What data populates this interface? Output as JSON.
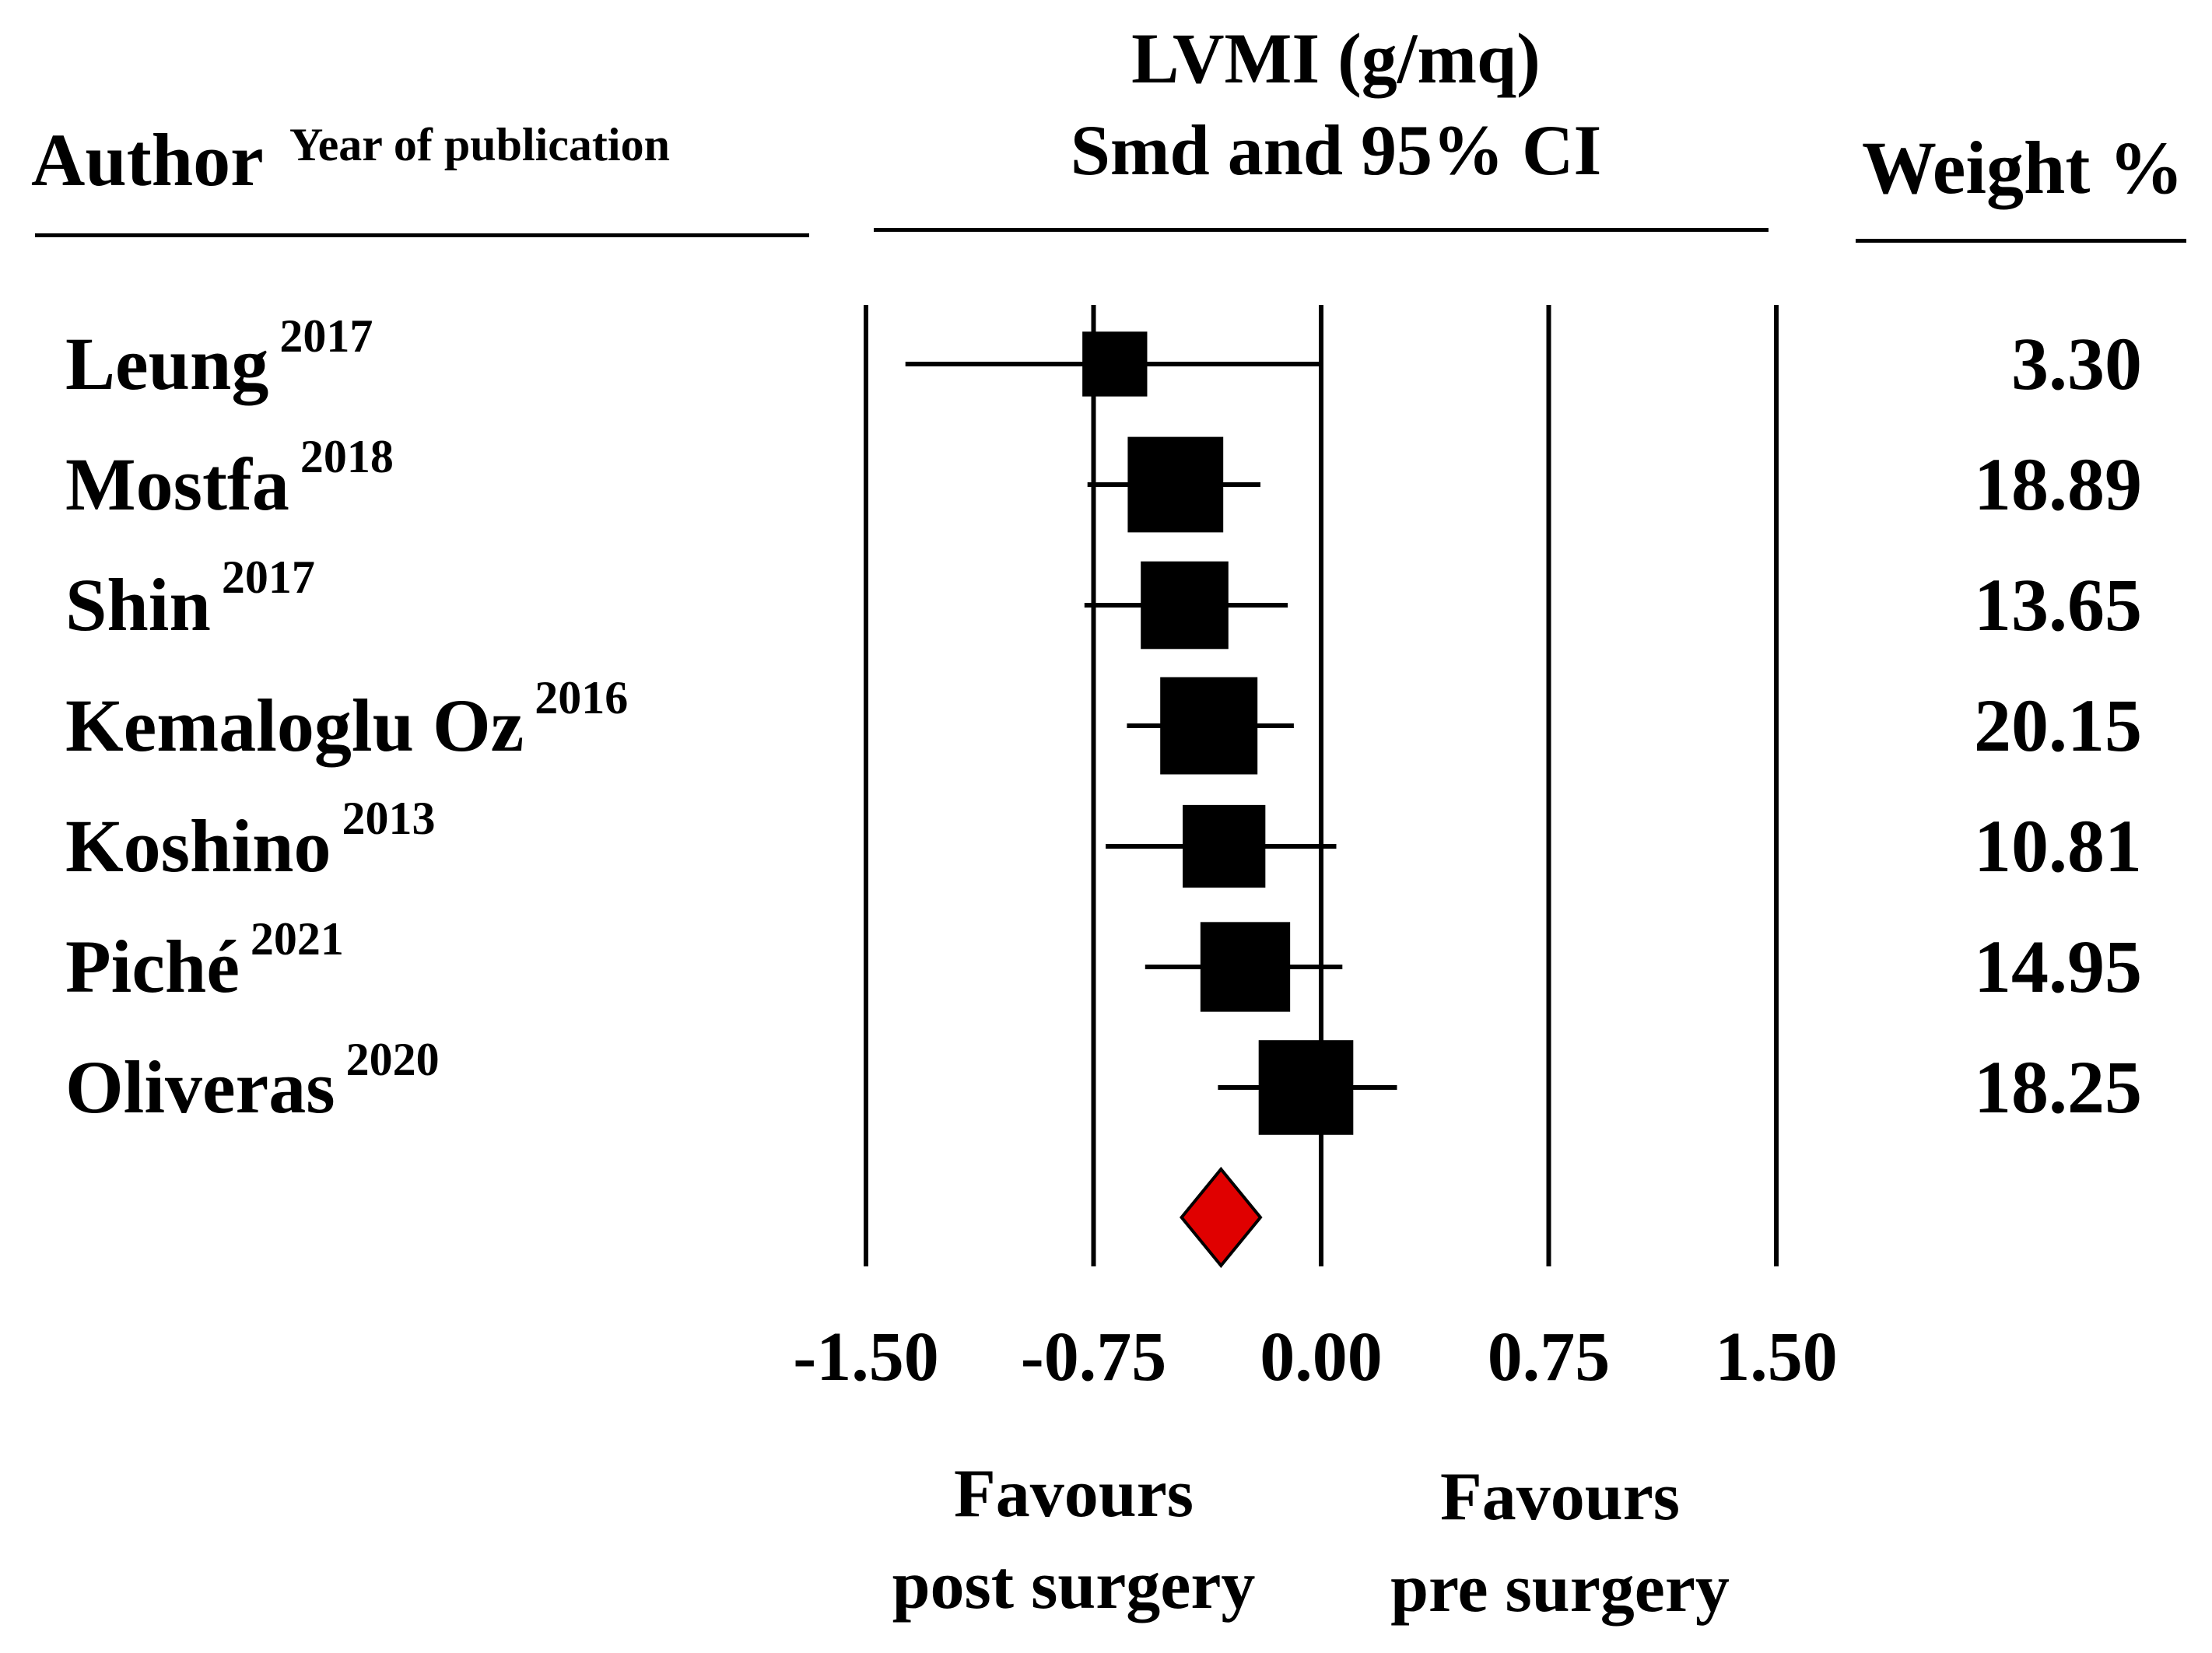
{
  "chart_data": {
    "type": "forest",
    "title": "LVMI (g/mq)",
    "subtitle": "Smd and 95% CI",
    "columns": {
      "author": "Author",
      "year": "Year of publication",
      "weight": "Weight %"
    },
    "xlim": [
      -1.5,
      1.5
    ],
    "xticks": [
      -1.5,
      -0.75,
      0.0,
      0.75,
      1.5
    ],
    "xtick_labels": [
      "-1.50",
      "-0.75",
      "0.00",
      "0.75",
      "1.50"
    ],
    "studies": [
      {
        "author": "Leung",
        "year": "2017",
        "smd": -0.68,
        "ci": [
          -1.37,
          0.0
        ],
        "weight": 3.3,
        "weight_label": "3.30"
      },
      {
        "author": "Mostfa",
        "year": "2018",
        "smd": -0.48,
        "ci": [
          -0.77,
          -0.2
        ],
        "weight": 18.89,
        "weight_label": "18.89"
      },
      {
        "author": "Shin",
        "year": "2017",
        "smd": -0.45,
        "ci": [
          -0.78,
          -0.11
        ],
        "weight": 13.65,
        "weight_label": "13.65"
      },
      {
        "author": "Kemaloglu Oz",
        "year": "2016",
        "smd": -0.37,
        "ci": [
          -0.64,
          -0.09
        ],
        "weight": 20.15,
        "weight_label": "20.15"
      },
      {
        "author": "Koshino",
        "year": "2013",
        "smd": -0.32,
        "ci": [
          -0.71,
          0.05
        ],
        "weight": 10.81,
        "weight_label": "10.81"
      },
      {
        "author": "Piché",
        "year": "2021",
        "smd": -0.25,
        "ci": [
          -0.58,
          0.07
        ],
        "weight": 14.95,
        "weight_label": "14.95"
      },
      {
        "author": "Oliveras",
        "year": "2020",
        "smd": -0.05,
        "ci": [
          -0.34,
          0.25
        ],
        "weight": 18.25,
        "weight_label": "18.25"
      }
    ],
    "pooled": {
      "smd": -0.33,
      "ci": [
        -0.46,
        -0.2
      ],
      "color": "#e00000"
    },
    "favours_left": [
      "Favours",
      "post surgery"
    ],
    "favours_right": [
      "Favours",
      "pre surgery"
    ]
  }
}
